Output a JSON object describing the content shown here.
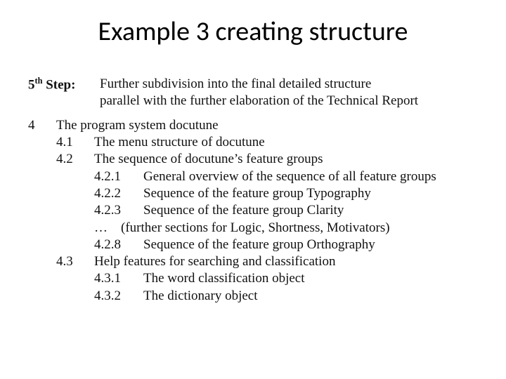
{
  "title": "Example 3 creating structure",
  "step": {
    "ord": "th",
    "num": "5",
    "suffix": " Step:",
    "line1": "Further subdivision into the final detailed structure",
    "line2": "parallel with the further elaboration of the Technical Report"
  },
  "outline": {
    "n4": "4",
    "l4": "The program system docutune",
    "n41": "4.1",
    "l41": "The menu structure of docutune",
    "n42": "4.2",
    "l42": "The sequence of docutune’s feature groups",
    "n421": "4.2.1",
    "l421": "General overview of the sequence of all feature groups",
    "n422": "4.2.2",
    "l422": "Sequence of the feature group Typography",
    "n423": "4.2.3",
    "l423": "Sequence of the feature group Clarity",
    "ellipsis": "…",
    "ellipsis_text": "(further sections for Logic, Shortness, Motivators)",
    "n428": "4.2.8",
    "l428": "Sequence of the feature group Orthography",
    "n43": "4.3",
    "l43": "Help features for searching and classification",
    "n431": "4.3.1",
    "l431": "The word classification object",
    "n432": "4.3.2",
    "l432": "The dictionary object"
  },
  "colors": {
    "background": "#ffffff",
    "text": "#000000"
  },
  "fonts": {
    "title_family": "Calibri",
    "title_size_pt": 32,
    "body_family": "Times New Roman",
    "body_size_pt": 16
  }
}
